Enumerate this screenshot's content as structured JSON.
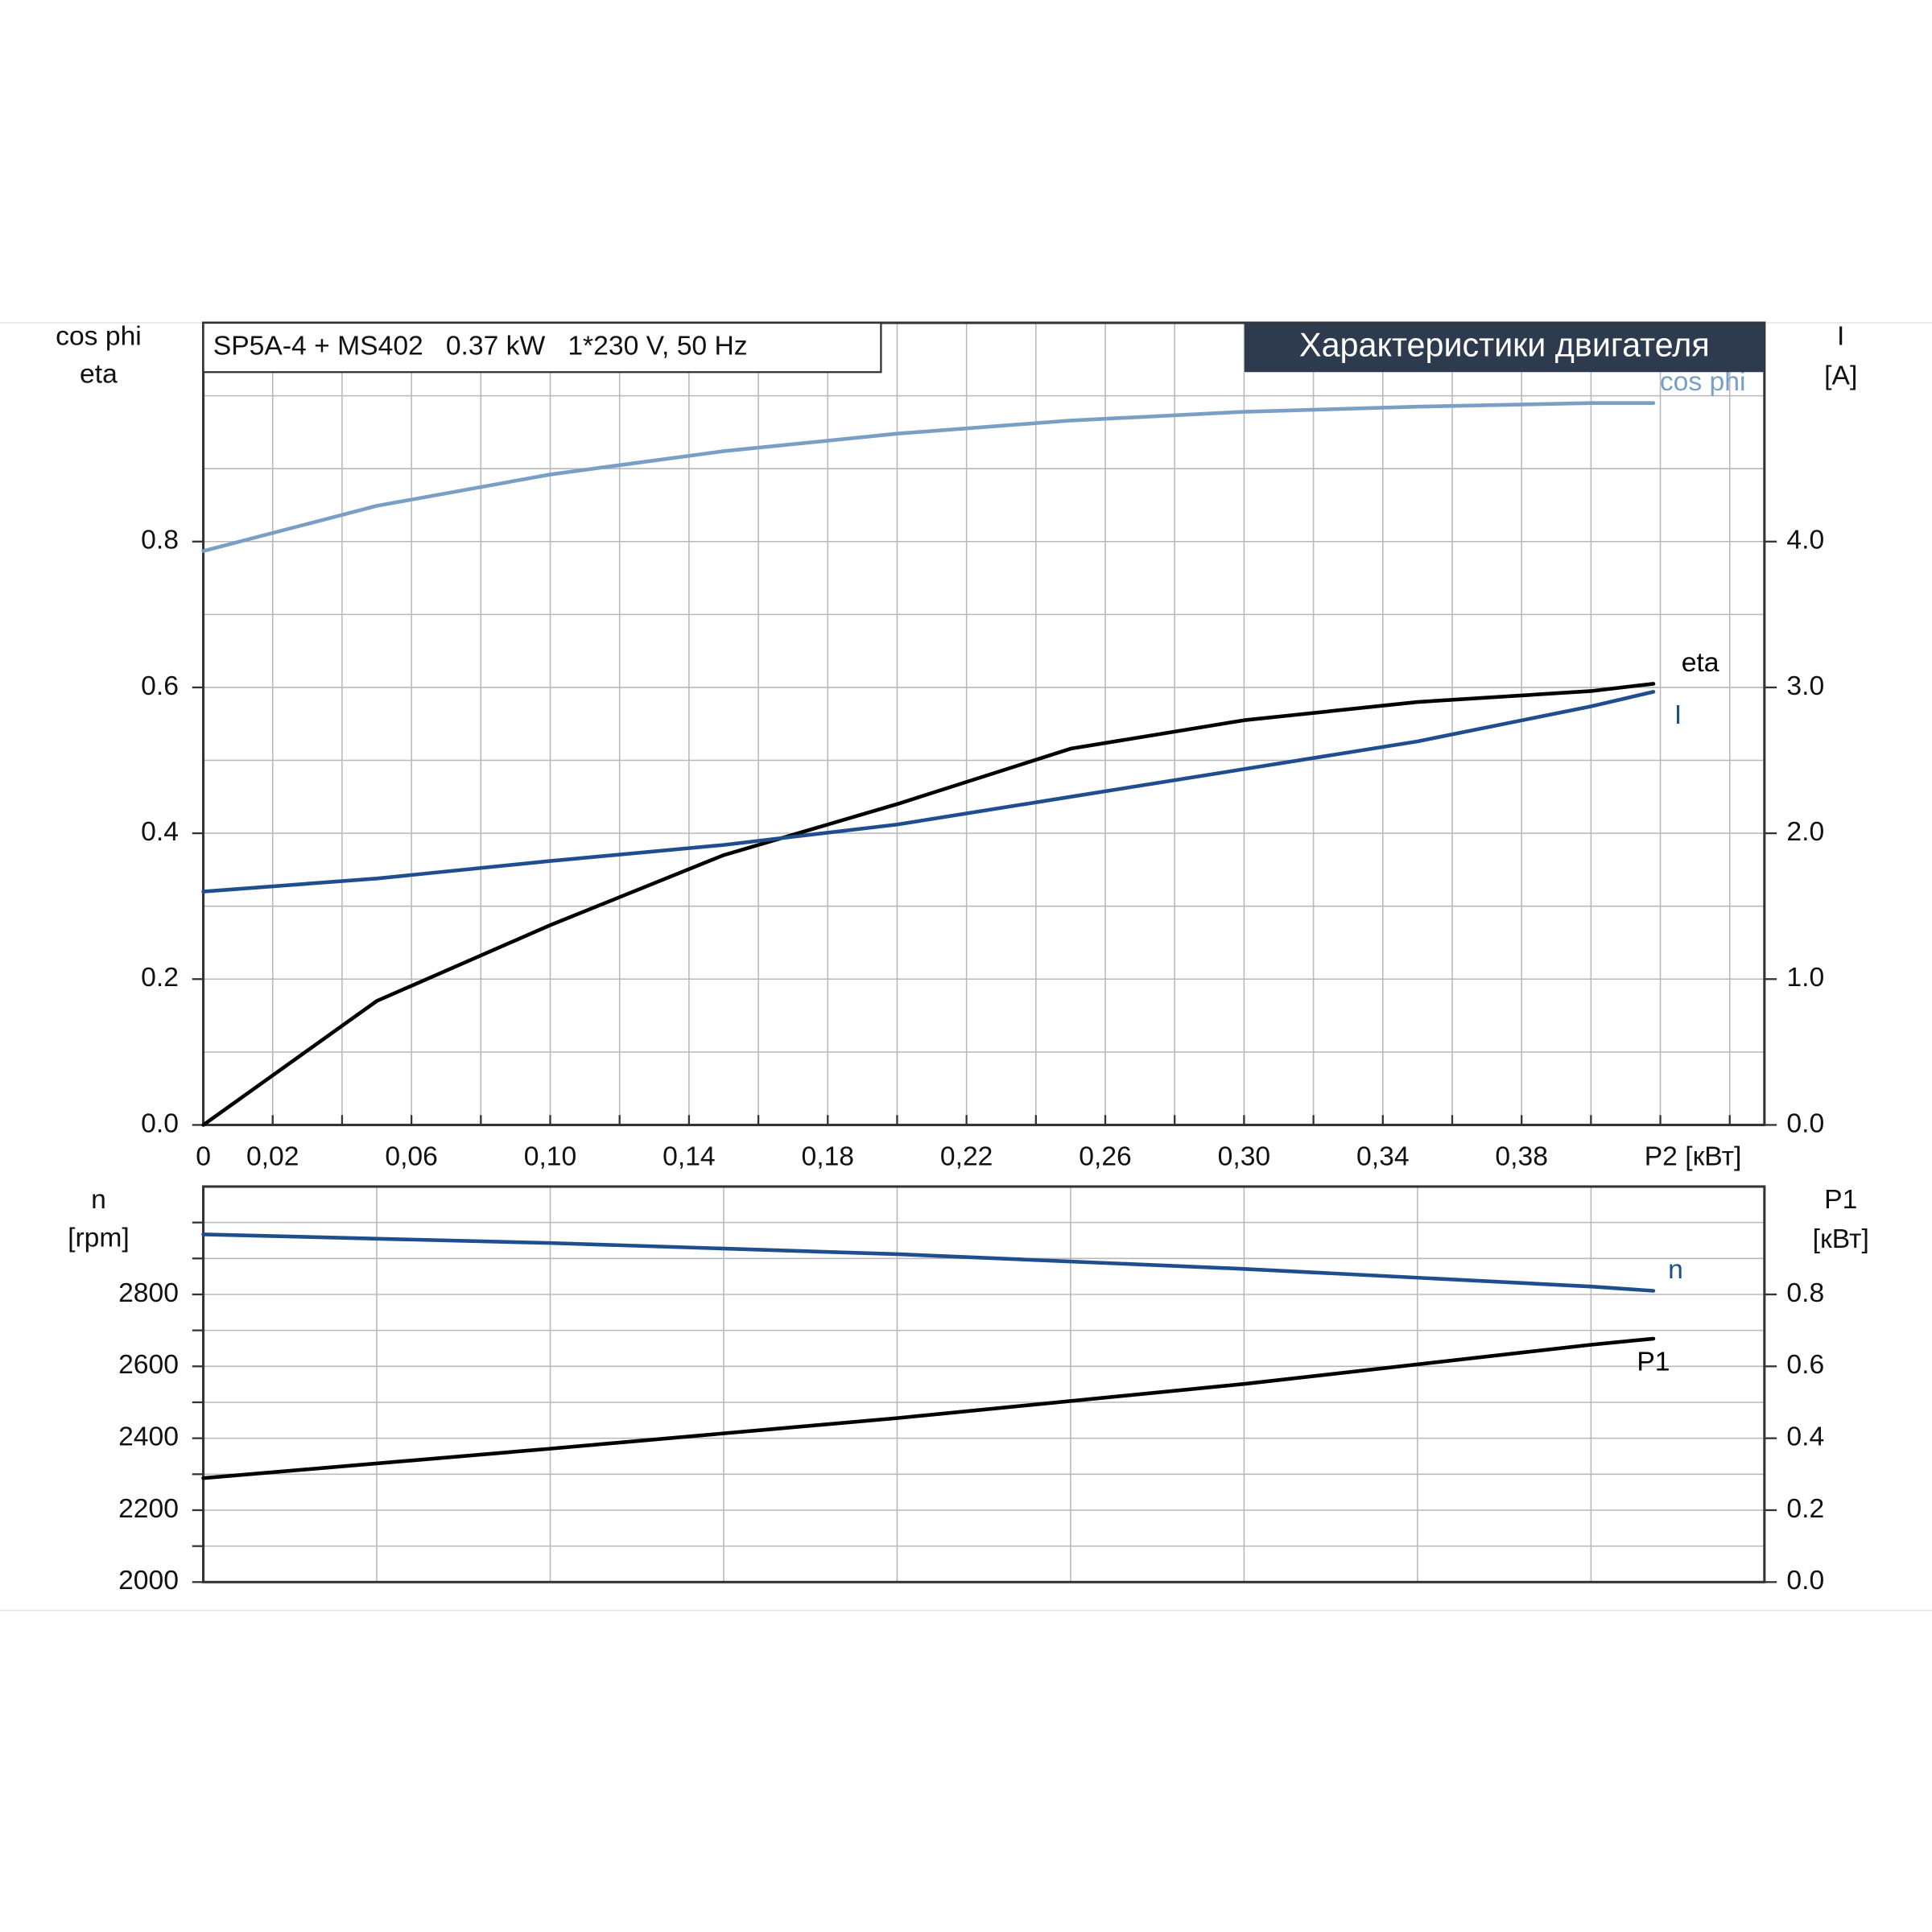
{
  "chart_data": [
    {
      "type": "line",
      "title": "Характеристики двигателя",
      "subtitle": "SP5A-4 + MS402   0.37 kW   1*230 V, 50 Hz",
      "ylabel_lines": [
        "cos phi",
        "eta"
      ],
      "y2label_lines": [
        "I",
        "[A]"
      ],
      "xlabel": "P2 [кВт]",
      "xlim": [
        0,
        0.45
      ],
      "ylim": [
        0,
        1.1
      ],
      "y2lim": [
        0,
        5.5
      ],
      "xticks": [
        0,
        {
          "value": 0.02,
          "label": "0,02"
        },
        {
          "value": 0.06,
          "label": "0,06"
        },
        {
          "value": 0.1,
          "label": "0,10"
        },
        {
          "value": 0.14,
          "label": "0,14"
        },
        {
          "value": 0.18,
          "label": "0,18"
        },
        {
          "value": 0.22,
          "label": "0,22"
        },
        {
          "value": 0.26,
          "label": "0,26"
        },
        {
          "value": 0.3,
          "label": "0,30"
        },
        {
          "value": 0.34,
          "label": "0,34"
        },
        {
          "value": 0.38,
          "label": "0,38"
        }
      ],
      "xminorticks": [
        0.04,
        0.08,
        0.12,
        0.16,
        0.2,
        0.24,
        0.28,
        0.32,
        0.36,
        0.4,
        0.42,
        0.44
      ],
      "yticks": [
        {
          "value": 0,
          "label": "0.0"
        },
        {
          "value": 0.2,
          "label": "0.2"
        },
        {
          "value": 0.4,
          "label": "0.4"
        },
        {
          "value": 0.6,
          "label": "0.6"
        },
        {
          "value": 0.8,
          "label": "0.8"
        }
      ],
      "yminorticks": [
        0.1,
        0.3,
        0.5,
        0.7,
        0.9,
        1.0
      ],
      "y2ticks": [
        {
          "value": 0,
          "label": "0.0"
        },
        {
          "value": 1,
          "label": "1.0"
        },
        {
          "value": 2,
          "label": "2.0"
        },
        {
          "value": 3,
          "label": "3.0"
        },
        {
          "value": 4,
          "label": "4.0"
        }
      ],
      "grid": true,
      "x": [
        0,
        0.05,
        0.1,
        0.15,
        0.2,
        0.25,
        0.3,
        0.35,
        0.4,
        0.418
      ],
      "series": [
        {
          "name": "cos phi",
          "color": "#7a9fc4",
          "values": [
            0.787,
            0.849,
            0.892,
            0.924,
            0.948,
            0.966,
            0.978,
            0.985,
            0.99,
            0.99
          ]
        },
        {
          "name": "eta",
          "color": "#000000",
          "values": [
            0,
            0.17,
            0.274,
            0.37,
            0.44,
            0.516,
            0.555,
            0.58,
            0.595,
            0.605
          ]
        },
        {
          "name": "I",
          "color": "#1f4e8f",
          "axis": "y2",
          "values": [
            1.6,
            1.69,
            1.81,
            1.92,
            2.06,
            2.25,
            2.44,
            2.63,
            2.87,
            2.97
          ]
        }
      ]
    },
    {
      "type": "line",
      "ylabel_lines": [
        "n",
        "[rpm]"
      ],
      "y2label_lines": [
        "P1",
        "[кВт]"
      ],
      "xlim": [
        0,
        0.45
      ],
      "ylim": [
        2000,
        3100
      ],
      "y2lim": [
        0,
        1.1
      ],
      "xminorticks": [
        0.05,
        0.1,
        0.15,
        0.2,
        0.25,
        0.3,
        0.35,
        0.4
      ],
      "yticks": [
        2000,
        2200,
        2400,
        2600,
        2800
      ],
      "yminorticks": [
        2100,
        2300,
        2500,
        2700,
        2900,
        3000
      ],
      "y2ticks": [
        {
          "value": 0,
          "label": "0.0"
        },
        {
          "value": 0.2,
          "label": "0.2"
        },
        {
          "value": 0.4,
          "label": "0.4"
        },
        {
          "value": 0.6,
          "label": "0.6"
        },
        {
          "value": 0.8,
          "label": "0.8"
        }
      ],
      "grid": true,
      "x": [
        0,
        0.1,
        0.2,
        0.3,
        0.4,
        0.418
      ],
      "series": [
        {
          "name": "n",
          "color": "#1f4e8f",
          "values": [
            2967,
            2943,
            2912,
            2871,
            2822,
            2810
          ]
        },
        {
          "name": "P1",
          "color": "#000000",
          "axis": "y2",
          "values": [
            0.289,
            0.371,
            0.456,
            0.551,
            0.66,
            0.677
          ]
        }
      ]
    }
  ]
}
